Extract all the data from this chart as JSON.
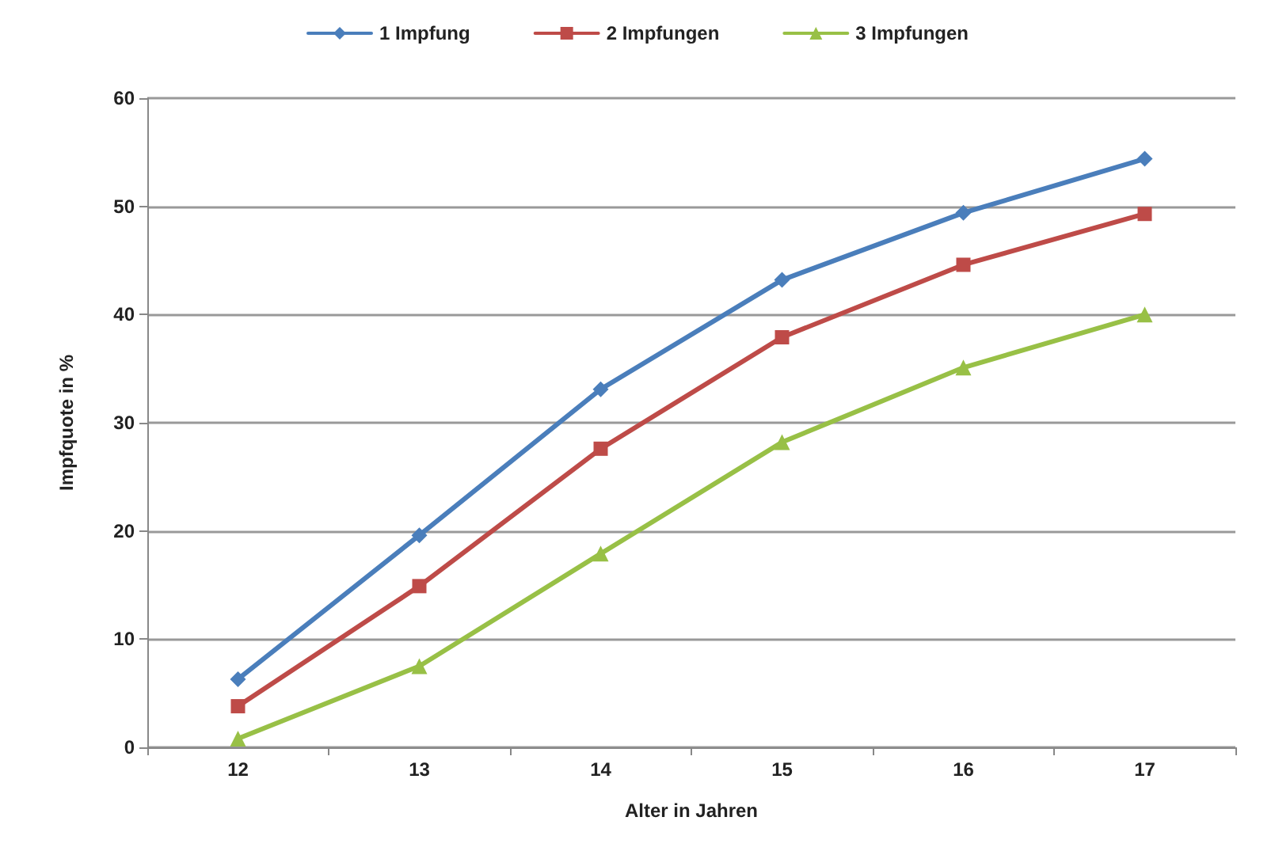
{
  "chart_data": {
    "type": "line",
    "xlabel": "Alter in Jahren",
    "ylabel": "Impfquote in %",
    "categories": [
      "12",
      "13",
      "14",
      "15",
      "16",
      "17"
    ],
    "series": [
      {
        "name": "1 Impfung",
        "color": "#4a7ebb",
        "marker": "diamond",
        "values": [
          6.3,
          19.6,
          33.1,
          43.2,
          49.4,
          54.4
        ]
      },
      {
        "name": "2 Impfungen",
        "color": "#be4b48",
        "marker": "square",
        "values": [
          3.8,
          14.9,
          27.6,
          37.9,
          44.6,
          49.3
        ]
      },
      {
        "name": "3 Impfungen",
        "color": "#98c046",
        "marker": "triangle",
        "values": [
          0.8,
          7.5,
          17.9,
          28.2,
          35.1,
          40.0
        ]
      }
    ],
    "ylim": [
      0,
      60
    ],
    "yticks": [
      0,
      10,
      20,
      30,
      40,
      50,
      60
    ],
    "grid": "y",
    "legend": "top",
    "line_style": "solid"
  }
}
